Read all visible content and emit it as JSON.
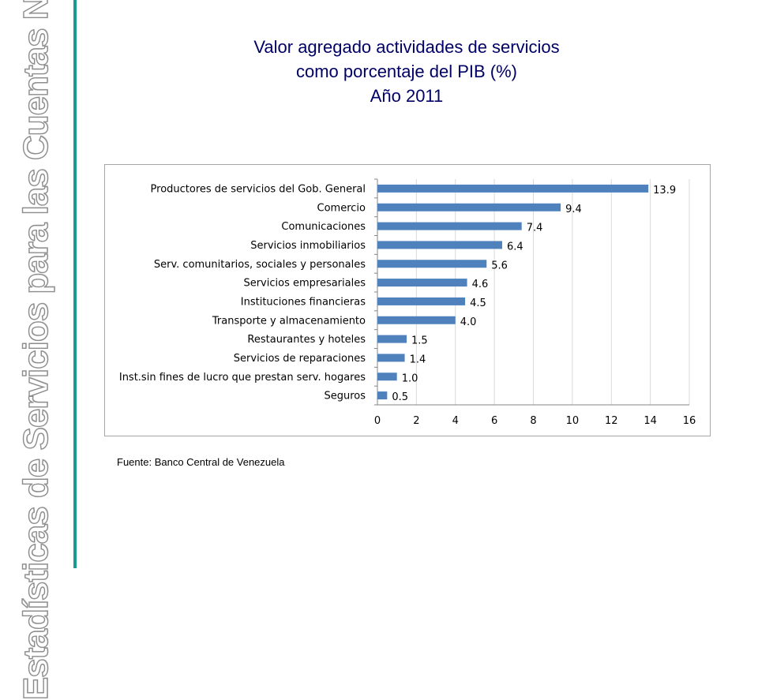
{
  "slide": {
    "side_title": "Estadísticas de Servicios para las Cuentas Nacionales",
    "title_lines": [
      "Valor agregado actividades de servicios",
      "como porcentaje del PIB (%)",
      "Año 2011"
    ],
    "source": "Fuente: Banco Central de Venezuela",
    "accent_color": "#1a9a92",
    "title_color": "#000066"
  },
  "chart_data": {
    "type": "bar",
    "orientation": "horizontal",
    "title": "",
    "xlabel": "",
    "ylabel": "",
    "categories": [
      "Productores de servicios del Gob. General",
      "Comercio",
      "Comunicaciones",
      "Servicios inmobiliarios",
      "Serv. comunitarios, sociales y personales",
      "Servicios empresariales",
      "Instituciones financieras",
      "Transporte y almacenamiento",
      "Restaurantes y hoteles",
      "Servicios de reparaciones",
      "Inst.sin fines de lucro que prestan serv. hogares",
      "Seguros"
    ],
    "values": [
      13.9,
      9.4,
      7.4,
      6.4,
      5.6,
      4.6,
      4.5,
      4.0,
      1.5,
      1.4,
      1.0,
      0.5
    ],
    "value_labels": [
      "13.9",
      "9.4",
      "7.4",
      "6.4",
      "5.6",
      "4.6",
      "4.5",
      "4.0",
      "1.5",
      "1.4",
      "1.0",
      "0.5"
    ],
    "xlim": [
      0,
      16
    ],
    "xticks": [
      0,
      2,
      4,
      6,
      8,
      10,
      12,
      14,
      16
    ],
    "grid": true,
    "legend": "none",
    "bar_color": "#4f81bd"
  }
}
